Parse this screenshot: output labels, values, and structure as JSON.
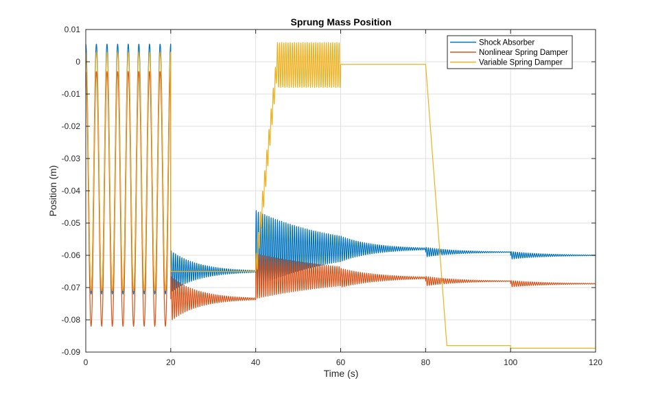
{
  "chart_data": {
    "type": "line",
    "title": "Sprung Mass Position",
    "xlabel": "Time (s)",
    "ylabel": "Position (m)",
    "xlim": [
      0,
      120
    ],
    "ylim": [
      -0.09,
      0.01
    ],
    "xticks": [
      0,
      20,
      40,
      60,
      80,
      100,
      120
    ],
    "xtick_labels": [
      "0",
      "20",
      "40",
      "60",
      "80",
      "100",
      "120"
    ],
    "yticks": [
      0.01,
      0,
      -0.01,
      -0.02,
      -0.03,
      -0.04,
      -0.05,
      -0.06,
      -0.07,
      -0.08,
      -0.09
    ],
    "ytick_labels": [
      "0.01",
      "0",
      "-0.01",
      "-0.02",
      "-0.03",
      "-0.04",
      "-0.05",
      "-0.06",
      "-0.07",
      "-0.08",
      "-0.09"
    ],
    "grid": true,
    "legend_position": "top-right",
    "series": [
      {
        "name": "Shock Absorber",
        "color": "#0072BD",
        "segments": [
          {
            "t": [
              0,
              20
            ],
            "kind": "oscillate",
            "min": -0.072,
            "max": 0.0055,
            "period": 2.5
          },
          {
            "t": [
              20,
              40
            ],
            "kind": "decay",
            "center": -0.065,
            "amp0": 0.0065,
            "amp1": 0.0003,
            "period": 0.5
          },
          {
            "t": [
              40,
              60
            ],
            "kind": "decay",
            "center": -0.058,
            "amp0": 0.012,
            "amp1": 0.004,
            "period": 0.5
          },
          {
            "t": [
              60,
              80
            ],
            "kind": "decay",
            "center": -0.058,
            "amp0": 0.004,
            "amp1": 0.0003,
            "period": 0.5
          },
          {
            "t": [
              80,
              100
            ],
            "kind": "decay",
            "center": -0.059,
            "amp0": 0.0015,
            "amp1": 0.0001,
            "period": 0.5
          },
          {
            "t": [
              100,
              120
            ],
            "kind": "decay",
            "center": -0.06,
            "amp0": 0.0012,
            "amp1": 0.0001,
            "period": 0.5
          }
        ]
      },
      {
        "name": "Nonlinear Spring Damper",
        "color": "#D95319",
        "segments": [
          {
            "t": [
              0,
              20
            ],
            "kind": "oscillate",
            "min": -0.082,
            "max": -0.003,
            "period": 2.5
          },
          {
            "t": [
              20,
              40
            ],
            "kind": "decay",
            "center": -0.0735,
            "amp0": 0.007,
            "amp1": 0.0003,
            "period": 0.5
          },
          {
            "t": [
              40,
              60
            ],
            "kind": "decay",
            "center": -0.0665,
            "amp0": 0.007,
            "amp1": 0.003,
            "period": 0.5
          },
          {
            "t": [
              60,
              80
            ],
            "kind": "decay",
            "center": -0.067,
            "amp0": 0.003,
            "amp1": 0.0003,
            "period": 0.5
          },
          {
            "t": [
              80,
              100
            ],
            "kind": "decay",
            "center": -0.068,
            "amp0": 0.0015,
            "amp1": 0.0001,
            "period": 0.5
          },
          {
            "t": [
              100,
              120
            ],
            "kind": "decay",
            "center": -0.0688,
            "amp0": 0.001,
            "amp1": 0.0001,
            "period": 0.5
          }
        ]
      },
      {
        "name": "Variable Spring Damper",
        "color": "#EDB120",
        "segments": [
          {
            "t": [
              0,
              20
            ],
            "kind": "oscillate",
            "min": -0.071,
            "max": 0.003,
            "period": 2.5
          },
          {
            "t": [
              20,
              40
            ],
            "kind": "flat",
            "value": -0.065
          },
          {
            "t": [
              40,
              45
            ],
            "kind": "ramp",
            "from": -0.065,
            "to": -0.001,
            "amp": 0.004,
            "period": 0.5
          },
          {
            "t": [
              45,
              60
            ],
            "kind": "decay",
            "center": -0.001,
            "amp0": 0.007,
            "amp1": 0.007,
            "period": 0.5
          },
          {
            "t": [
              60,
              80
            ],
            "kind": "flat",
            "value": -0.0008
          },
          {
            "t": [
              80,
              85
            ],
            "kind": "linear",
            "from": -0.0008,
            "to": -0.088
          },
          {
            "t": [
              85,
              100
            ],
            "kind": "flat",
            "value": -0.088
          },
          {
            "t": [
              100,
              120
            ],
            "kind": "flat",
            "value": -0.0888
          }
        ]
      }
    ]
  }
}
